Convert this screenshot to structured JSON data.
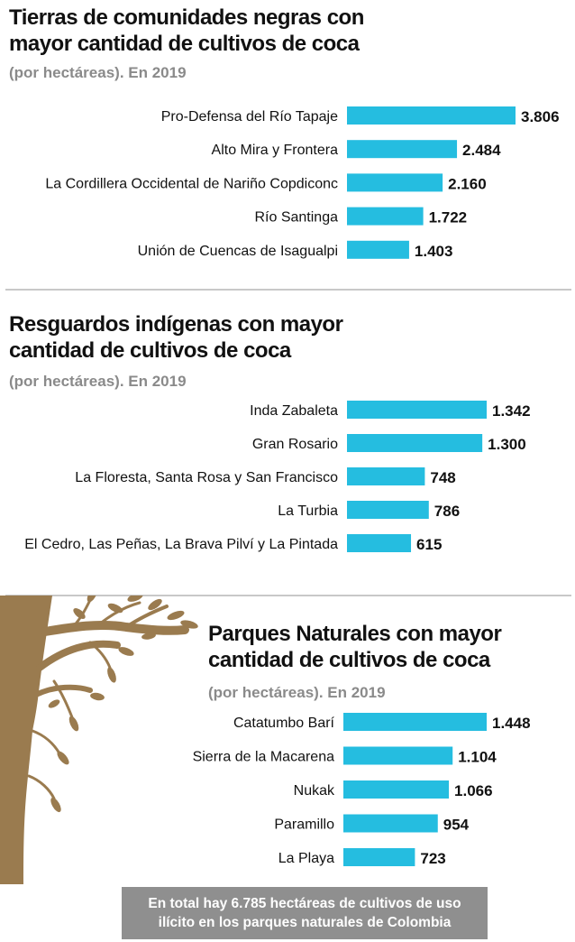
{
  "charts": [
    {
      "title_lines": [
        "Tierras de comunidades negras con",
        "mayor cantidad de cultivos de coca"
      ],
      "subtitle": "(por hectáreas). En 2019"
    },
    {
      "title_lines": [
        "Resguardos indígenas con mayor",
        "cantidad de cultivos de coca"
      ],
      "subtitle": "(por hectáreas). En 2019"
    },
    {
      "title_lines": [
        "Parques Naturales con mayor",
        "cantidad de cultivos de coca"
      ],
      "subtitle": "(por hectáreas). En 2019"
    }
  ],
  "chart_data": [
    {
      "type": "bar",
      "orientation": "horizontal",
      "title": "Tierras de comunidades negras con mayor cantidad de cultivos de coca",
      "subtitle": "(por hectáreas). En 2019",
      "categories": [
        "Pro-Defensa del Río Tapaje",
        "Alto Mira y Frontera",
        "La Cordillera Occidental de Nariño Copdiconc",
        "Río Santinga",
        "Unión de Cuencas de Isagualpi"
      ],
      "values": [
        3806,
        2484,
        2160,
        1722,
        1403
      ],
      "value_labels": [
        "3.806",
        "2.484",
        "2.160",
        "1.722",
        "1.403"
      ],
      "bar_color": "#25bde0"
    },
    {
      "type": "bar",
      "orientation": "horizontal",
      "title": "Resguardos indígenas con mayor cantidad de cultivos de coca",
      "subtitle": "(por hectáreas). En 2019",
      "categories": [
        "Inda Zabaleta",
        "Gran Rosario",
        "La Floresta, Santa Rosa y San Francisco",
        "La Turbia",
        "El Cedro, Las Peñas, La Brava Pilví y La Pintada"
      ],
      "values": [
        1342,
        1300,
        748,
        786,
        615
      ],
      "value_labels": [
        "1.342",
        "1.300",
        "748",
        "786",
        "615"
      ],
      "bar_color": "#25bde0"
    },
    {
      "type": "bar",
      "orientation": "horizontal",
      "title": "Parques Naturales con mayor cantidad de cultivos de coca",
      "subtitle": "(por hectáreas). En 2019",
      "categories": [
        "Catatumbo Barí",
        "Sierra de la Macarena",
        "Nukak",
        "Paramillo",
        "La Playa"
      ],
      "values": [
        1448,
        1104,
        1066,
        954,
        723
      ],
      "value_labels": [
        "1.448",
        "1.104",
        "1.066",
        "954",
        "723"
      ],
      "bar_color": "#25bde0"
    }
  ],
  "footer": {
    "line1": "En total hay 6.785 hectáreas de cultivos de uso",
    "line2": "ilícito en los parques naturales de Colombia"
  },
  "colors": {
    "bar": "#25bde0",
    "subtitle": "#8a8a8a",
    "divider": "#c8c8c8",
    "tree": "#9a7b4f",
    "footer_bg": "#8f8f8f"
  },
  "illustration": "tree-icon"
}
